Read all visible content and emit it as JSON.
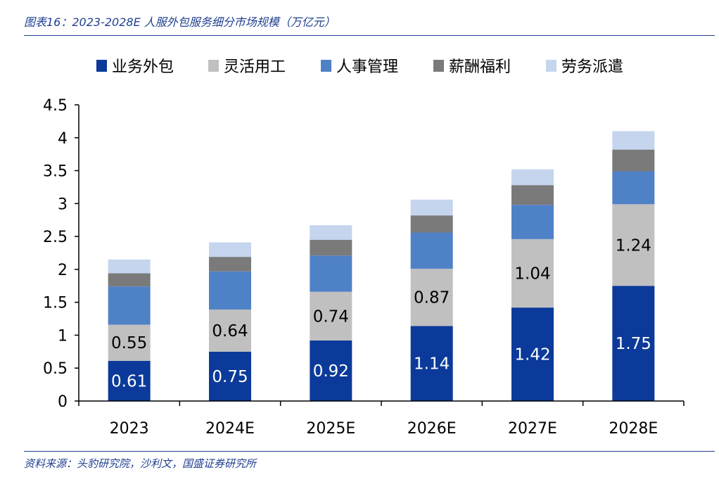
{
  "figure": {
    "title": "图表16：2023-2028E 人服外包服务细分市场规模（万亿元）",
    "source": "资料来源：头豹研究院，沙利文，国盛证券研究所"
  },
  "chart_data": {
    "type": "bar",
    "stacked": true,
    "title": "2023-2028E 人服外包服务细分市场规模（万亿元）",
    "xlabel": "",
    "ylabel": "",
    "categories": [
      "2023",
      "2024E",
      "2025E",
      "2026E",
      "2027E",
      "2028E"
    ],
    "ylim": [
      0,
      4.5
    ],
    "yticks": [
      0,
      0.5,
      1,
      1.5,
      2,
      2.5,
      3,
      3.5,
      4,
      4.5
    ],
    "ytick_labels": [
      "0",
      "0.5",
      "1",
      "1.5",
      "2",
      "2.5",
      "3",
      "3.5",
      "4",
      "4.5"
    ],
    "grid": false,
    "legend_position": "top",
    "series": [
      {
        "name": "业务外包",
        "color": "#0b3a9a",
        "label_color": "#ffffff",
        "show_labels": true,
        "values": [
          0.61,
          0.75,
          0.92,
          1.14,
          1.42,
          1.75
        ],
        "labels": [
          "0.61",
          "0.75",
          "0.92",
          "1.14",
          "1.42",
          "1.75"
        ]
      },
      {
        "name": "灵活用工",
        "color": "#c0c0c0",
        "label_color": "#000000",
        "show_labels": true,
        "values": [
          0.55,
          0.64,
          0.74,
          0.87,
          1.04,
          1.24
        ],
        "labels": [
          "0.55",
          "0.64",
          "0.74",
          "0.87",
          "1.04",
          "1.24"
        ]
      },
      {
        "name": "人事管理",
        "color": "#4f81c7",
        "label_color": "#ffffff",
        "show_labels": false,
        "values": [
          0.58,
          0.58,
          0.55,
          0.55,
          0.52,
          0.5
        ]
      },
      {
        "name": "薪酬福利",
        "color": "#7a7a7a",
        "label_color": "#ffffff",
        "show_labels": false,
        "values": [
          0.2,
          0.22,
          0.24,
          0.26,
          0.3,
          0.33
        ]
      },
      {
        "name": "劳务派遣",
        "color": "#c5d5ee",
        "label_color": "#000000",
        "show_labels": false,
        "values": [
          0.21,
          0.22,
          0.22,
          0.24,
          0.24,
          0.28
        ]
      }
    ]
  }
}
